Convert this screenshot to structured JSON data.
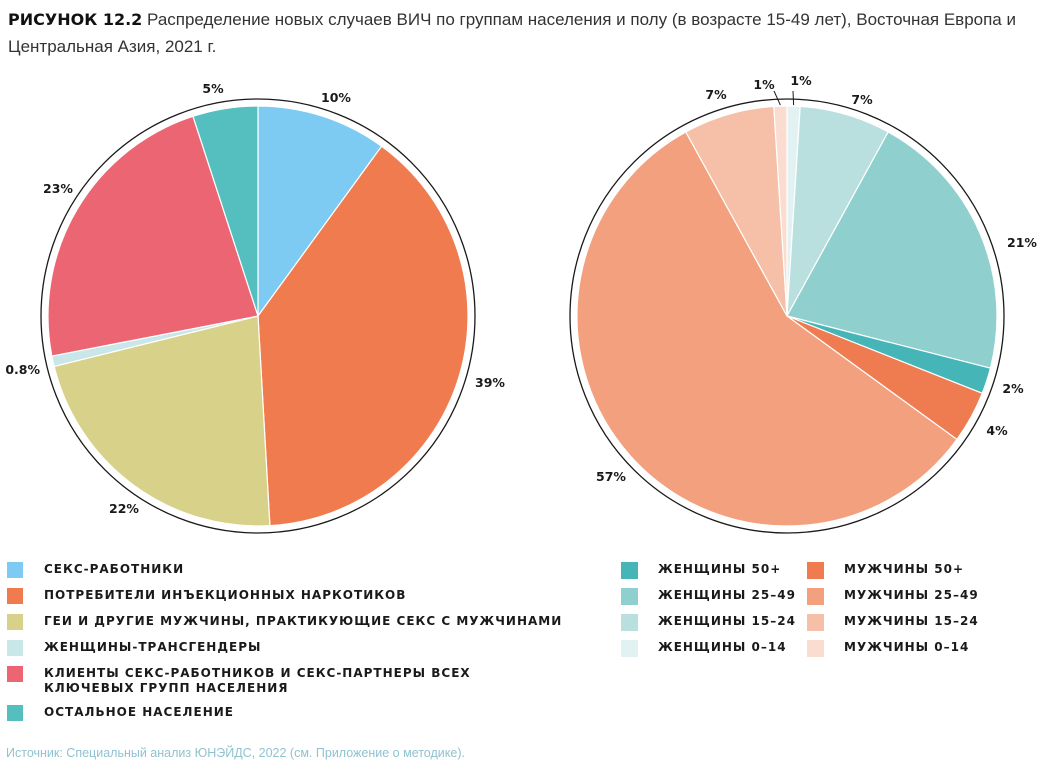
{
  "title": {
    "figure": "РИСУНОК 12.2",
    "text": "Распределение новых случаев ВИЧ по группам населения и полу (в возрасте 15-49 лет), Восточная Европа и Центральная Азия, 2021 г."
  },
  "chart_data": [
    {
      "type": "pie",
      "start": "12 o'clock, clockwise",
      "slices": [
        {
          "label": "СЕКС-РАБОТНИКИ",
          "value": 10,
          "value_label": "10%",
          "color": "#7dcaf2"
        },
        {
          "label": "ПОТРЕБИТЕЛИ ИНЪЕКЦИОННЫХ НАРКОТИКОВ",
          "value": 39,
          "value_label": "39%",
          "color": "#f07b4f"
        },
        {
          "label": "ГЕИ И ДРУГИЕ МУЖЧИНЫ, ПРАКТИКУЮЩИЕ СЕКС С МУЖЧИНАМИ",
          "value": 22,
          "value_label": "22%",
          "color": "#d8d18a"
        },
        {
          "label": "ЖЕНЩИНЫ-ТРАНСГЕНДЕРЫ",
          "value": 0.8,
          "value_label": "0.8%",
          "color": "#c9e6e8"
        },
        {
          "label": "КЛИЕНТЫ СЕКС-РАБОТНИКОВ И СЕКС-ПАРТНЕРЫ ВСЕХ КЛЮЧЕВЫХ ГРУПП НАСЕЛЕНИЯ",
          "value": 23,
          "value_label": "23%",
          "color": "#ec6573"
        },
        {
          "label": "ОСТАЛЬНОЕ НАСЕЛЕНИЕ",
          "value": 5,
          "value_label": "5%",
          "color": "#55bfbf"
        }
      ]
    },
    {
      "type": "pie",
      "start": "12 o'clock, clockwise",
      "slices": [
        {
          "label": "ЖЕНЩИНЫ 0–14",
          "value": 1,
          "value_label": "1%",
          "color": "#e2f2f3"
        },
        {
          "label": "ЖЕНЩИНЫ 15–24",
          "value": 7,
          "value_label": "7%",
          "color": "#b9dfdf"
        },
        {
          "label": "ЖЕНЩИНЫ 25–49",
          "value": 21,
          "value_label": "21%",
          "color": "#8fd0ce"
        },
        {
          "label": "ЖЕНЩИНЫ 50+",
          "value": 2,
          "value_label": "2%",
          "color": "#45b5b8"
        },
        {
          "label": "МУЖЧИНЫ 50+",
          "value": 4,
          "value_label": "4%",
          "color": "#ef7b50"
        },
        {
          "label": "МУЖЧИНЫ 25–49",
          "value": 57,
          "value_label": "57%",
          "color": "#f3a07e"
        },
        {
          "label": "МУЖЧИНЫ 15–24",
          "value": 7,
          "value_label": "7%",
          "color": "#f6c0a8"
        },
        {
          "label": "МУЖЧИНЫ 0–14",
          "value": 1,
          "value_label": "1%",
          "color": "#fbdcd0"
        }
      ]
    }
  ],
  "legend_left": [
    {
      "label": "СЕКС-РАБОТНИКИ",
      "color": "#7dcaf2"
    },
    {
      "label": "ПОТРЕБИТЕЛИ ИНЪЕКЦИОННЫХ НАРКОТИКОВ",
      "color": "#f07b4f"
    },
    {
      "label": "ГЕИ И ДРУГИЕ МУЖЧИНЫ, ПРАКТИКУЮЩИЕ СЕКС С МУЖЧИНАМИ",
      "color": "#d8d18a"
    },
    {
      "label": "ЖЕНЩИНЫ-ТРАНСГЕНДЕРЫ",
      "color": "#c9e6e8"
    },
    {
      "label": "КЛИЕНТЫ СЕКС-РАБОТНИКОВ И СЕКС-ПАРТНЕРЫ ВСЕХ КЛЮЧЕВЫХ ГРУПП НАСЕЛЕНИЯ",
      "color": "#ec6573"
    },
    {
      "label": "ОСТАЛЬНОЕ НАСЕЛЕНИЕ",
      "color": "#55bfbf"
    }
  ],
  "legend_women": [
    {
      "label": "ЖЕНЩИНЫ 50+",
      "color": "#45b5b8"
    },
    {
      "label": "ЖЕНЩИНЫ 25–49",
      "color": "#8fd0ce"
    },
    {
      "label": "ЖЕНЩИНЫ 15–24",
      "color": "#b9dfdf"
    },
    {
      "label": "ЖЕНЩИНЫ 0–14",
      "color": "#e2f2f3"
    }
  ],
  "legend_men": [
    {
      "label": "МУЖЧИНЫ 50+",
      "color": "#ef7b50"
    },
    {
      "label": "МУЖЧИНЫ 25–49",
      "color": "#f3a07e"
    },
    {
      "label": "МУЖЧИНЫ 15–24",
      "color": "#f6c0a8"
    },
    {
      "label": "МУЖЧИНЫ 0–14",
      "color": "#fbdcd0"
    }
  ],
  "source": "Источник: Специальный анализ ЮНЭЙДС, 2022 (см. Приложение о методике)."
}
